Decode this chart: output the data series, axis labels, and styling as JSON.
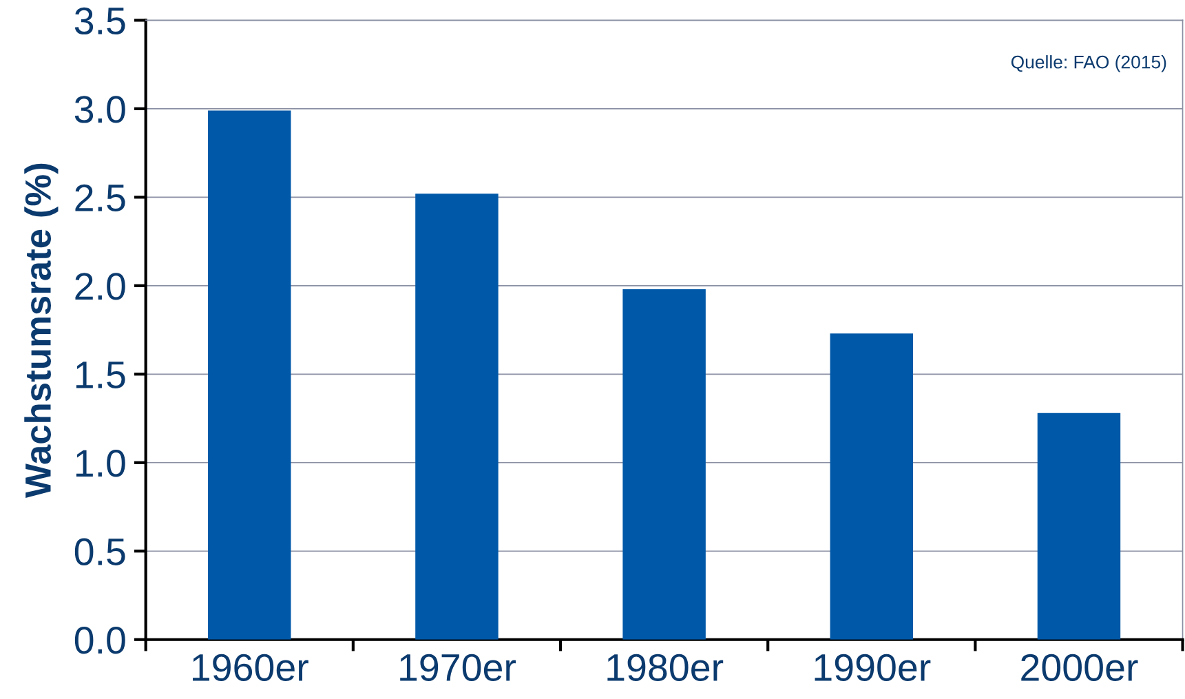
{
  "chart_data": {
    "type": "bar",
    "ylabel": "Wachstumsrate (%)",
    "categories": [
      "1960er",
      "1970er",
      "1980er",
      "1990er",
      "2000er"
    ],
    "values": [
      2.99,
      2.52,
      1.98,
      1.73,
      1.28
    ],
    "color": "#0058a8",
    "ylim": [
      0,
      3.5
    ],
    "yticks": [
      {
        "value": 0,
        "label": "0.0"
      },
      0.5,
      {
        "value": 1,
        "label": "1.0"
      },
      1.5,
      {
        "value": 2,
        "label": "2.0"
      },
      2.5,
      {
        "value": 3,
        "label": "3.0"
      },
      3.5
    ],
    "grid": "y",
    "annotations": [
      "Quelle: FAO (2015)"
    ]
  }
}
